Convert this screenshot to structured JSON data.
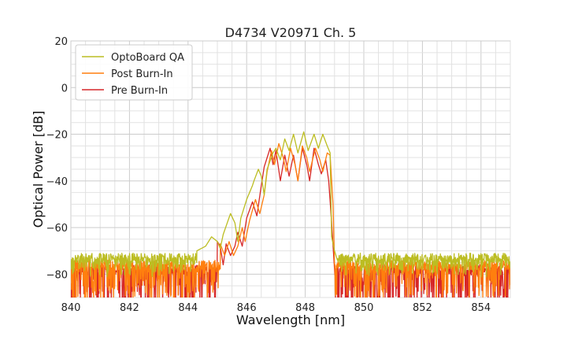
{
  "chart_data": {
    "type": "line",
    "title": "D4734 V20971 Ch. 5",
    "xlabel": "Wavelength [nm]",
    "ylabel": "Optical Power [dB]",
    "xlim": [
      840,
      855
    ],
    "ylim": [
      -90,
      20
    ],
    "xticks": [
      840,
      842,
      844,
      846,
      848,
      850,
      852,
      854
    ],
    "yticks": [
      20,
      0,
      -20,
      -40,
      -60,
      -80
    ],
    "grid": true,
    "legend": "top-left",
    "series": [
      {
        "name": "OptoBoard QA",
        "color": "#bcbd22",
        "noise_floor": -73,
        "noise_amplitude": 4,
        "points": [
          [
            844.3,
            -70
          ],
          [
            844.6,
            -68
          ],
          [
            844.8,
            -64
          ],
          [
            845.0,
            -66
          ],
          [
            845.1,
            -69
          ],
          [
            845.2,
            -63
          ],
          [
            845.45,
            -54
          ],
          [
            845.6,
            -58
          ],
          [
            845.7,
            -66
          ],
          [
            845.8,
            -56
          ],
          [
            846.0,
            -48
          ],
          [
            846.2,
            -42
          ],
          [
            846.25,
            -40
          ],
          [
            846.4,
            -35
          ],
          [
            846.5,
            -38
          ],
          [
            846.6,
            -46
          ],
          [
            846.7,
            -35
          ],
          [
            846.9,
            -28
          ],
          [
            847.0,
            -26
          ],
          [
            847.15,
            -31
          ],
          [
            847.3,
            -22
          ],
          [
            847.45,
            -27
          ],
          [
            847.6,
            -20
          ],
          [
            847.75,
            -28
          ],
          [
            847.95,
            -19
          ],
          [
            848.1,
            -27
          ],
          [
            848.3,
            -20
          ],
          [
            848.45,
            -26
          ],
          [
            848.6,
            -20
          ],
          [
            848.75,
            -25
          ],
          [
            848.85,
            -28
          ],
          [
            848.9,
            -64
          ],
          [
            849.0,
            -70
          ],
          [
            849.1,
            -74
          ]
        ]
      },
      {
        "name": "Post Burn-In",
        "color": "#ff7f0e",
        "noise_floor": -76,
        "noise_amplitude": 10,
        "points": [
          [
            845.1,
            -67
          ],
          [
            845.25,
            -72
          ],
          [
            845.4,
            -66
          ],
          [
            845.55,
            -72
          ],
          [
            845.7,
            -68
          ],
          [
            845.85,
            -60
          ],
          [
            845.95,
            -66
          ],
          [
            846.1,
            -57
          ],
          [
            846.3,
            -48
          ],
          [
            846.45,
            -54
          ],
          [
            846.6,
            -46
          ],
          [
            846.7,
            -36
          ],
          [
            846.85,
            -27
          ],
          [
            846.95,
            -33
          ],
          [
            847.1,
            -24
          ],
          [
            847.25,
            -30
          ],
          [
            847.35,
            -36
          ],
          [
            847.5,
            -26
          ],
          [
            847.65,
            -33
          ],
          [
            847.75,
            -40
          ],
          [
            847.9,
            -25
          ],
          [
            848.05,
            -30
          ],
          [
            848.15,
            -36
          ],
          [
            848.35,
            -26
          ],
          [
            848.5,
            -31
          ],
          [
            848.6,
            -36
          ],
          [
            848.75,
            -28
          ],
          [
            848.85,
            -29
          ],
          [
            848.95,
            -50
          ],
          [
            849.0,
            -76
          ]
        ]
      },
      {
        "name": "Pre Burn-In",
        "color": "#d62728",
        "noise_floor": -78,
        "noise_amplitude": 12,
        "points": [
          [
            845.0,
            -66
          ],
          [
            845.1,
            -68
          ],
          [
            845.2,
            -76
          ],
          [
            845.3,
            -67
          ],
          [
            845.45,
            -72
          ],
          [
            845.6,
            -68
          ],
          [
            845.7,
            -62
          ],
          [
            845.85,
            -68
          ],
          [
            846.0,
            -56
          ],
          [
            846.2,
            -49
          ],
          [
            846.35,
            -55
          ],
          [
            846.5,
            -42
          ],
          [
            846.6,
            -34
          ],
          [
            846.8,
            -26
          ],
          [
            846.9,
            -33
          ],
          [
            847.0,
            -27
          ],
          [
            847.15,
            -40
          ],
          [
            847.3,
            -29
          ],
          [
            847.45,
            -38
          ],
          [
            847.6,
            -29
          ],
          [
            847.75,
            -40
          ],
          [
            847.9,
            -26
          ],
          [
            848.05,
            -33
          ],
          [
            848.15,
            -40
          ],
          [
            848.3,
            -26
          ],
          [
            848.45,
            -33
          ],
          [
            848.55,
            -37
          ],
          [
            848.7,
            -31
          ],
          [
            848.8,
            -40
          ],
          [
            848.9,
            -58
          ],
          [
            849.0,
            -78
          ]
        ]
      }
    ]
  }
}
